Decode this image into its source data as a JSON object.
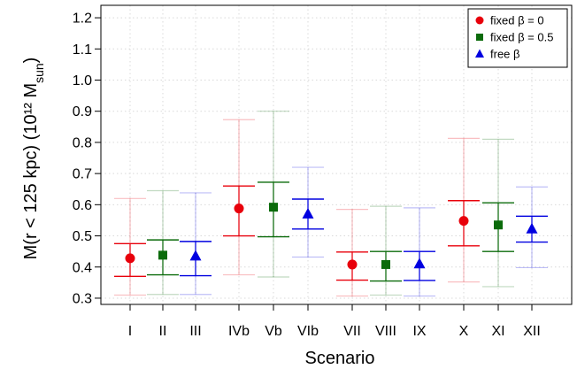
{
  "chart_data": {
    "type": "scatter",
    "xlabel": "Scenario",
    "ylabel": "M(r < 125 kpc)  (10¹² M",
    "ylabel_sub": "sun",
    "ylabel_close": ")",
    "ylim": [
      0.28,
      1.24
    ],
    "yticks": [
      0.3,
      0.4,
      0.5,
      0.6,
      0.7,
      0.8,
      0.9,
      1.0,
      1.1,
      1.2
    ],
    "ytick_labels": [
      "0.3",
      "0.4",
      "0.5",
      "0.6",
      "0.7",
      "0.8",
      "0.9",
      "1.0",
      "1.1",
      "1.2"
    ],
    "grid": true,
    "legend_position": "top-right",
    "categories": [
      "I",
      "II",
      "III",
      "IVb",
      "Vb",
      "VIb",
      "VII",
      "VIII",
      "IX",
      "X",
      "XI",
      "XII"
    ],
    "series": [
      {
        "name": "fixed β = 0",
        "color": "#e8000b",
        "marker": "circle",
        "points": [
          {
            "x": "I",
            "y": 0.428,
            "err_inner": [
              0.37,
              0.475
            ],
            "err_outer": [
              0.31,
              0.62
            ]
          },
          {
            "x": "IVb",
            "y": 0.588,
            "err_inner": [
              0.5,
              0.66
            ],
            "err_outer": [
              0.375,
              0.873
            ]
          },
          {
            "x": "VII",
            "y": 0.408,
            "err_inner": [
              0.358,
              0.448
            ],
            "err_outer": [
              0.307,
              0.585
            ]
          },
          {
            "x": "X",
            "y": 0.548,
            "err_inner": [
              0.468,
              0.613
            ],
            "err_outer": [
              0.352,
              0.813
            ]
          }
        ]
      },
      {
        "name": "fixed β = 0.5",
        "color": "#0b6b0b",
        "marker": "square",
        "points": [
          {
            "x": "II",
            "y": 0.438,
            "err_inner": [
              0.375,
              0.487
            ],
            "err_outer": [
              0.312,
              0.645
            ]
          },
          {
            "x": "Vb",
            "y": 0.592,
            "err_inner": [
              0.497,
              0.672
            ],
            "err_outer": [
              0.368,
              0.9
            ]
          },
          {
            "x": "VIII",
            "y": 0.408,
            "err_inner": [
              0.355,
              0.45
            ],
            "err_outer": [
              0.31,
              0.595
            ]
          },
          {
            "x": "XI",
            "y": 0.535,
            "err_inner": [
              0.45,
              0.606
            ],
            "err_outer": [
              0.337,
              0.81
            ]
          }
        ]
      },
      {
        "name": "free β",
        "color": "#0000e0",
        "marker": "triangle",
        "points": [
          {
            "x": "III",
            "y": 0.435,
            "err_inner": [
              0.372,
              0.482
            ],
            "err_outer": [
              0.312,
              0.638
            ]
          },
          {
            "x": "VIb",
            "y": 0.57,
            "err_inner": [
              0.522,
              0.618
            ],
            "err_outer": [
              0.432,
              0.72
            ]
          },
          {
            "x": "IX",
            "y": 0.41,
            "err_inner": [
              0.357,
              0.45
            ],
            "err_outer": [
              0.307,
              0.59
            ]
          },
          {
            "x": "XII",
            "y": 0.522,
            "err_inner": [
              0.48,
              0.563
            ],
            "err_outer": [
              0.398,
              0.657
            ]
          }
        ]
      }
    ]
  }
}
